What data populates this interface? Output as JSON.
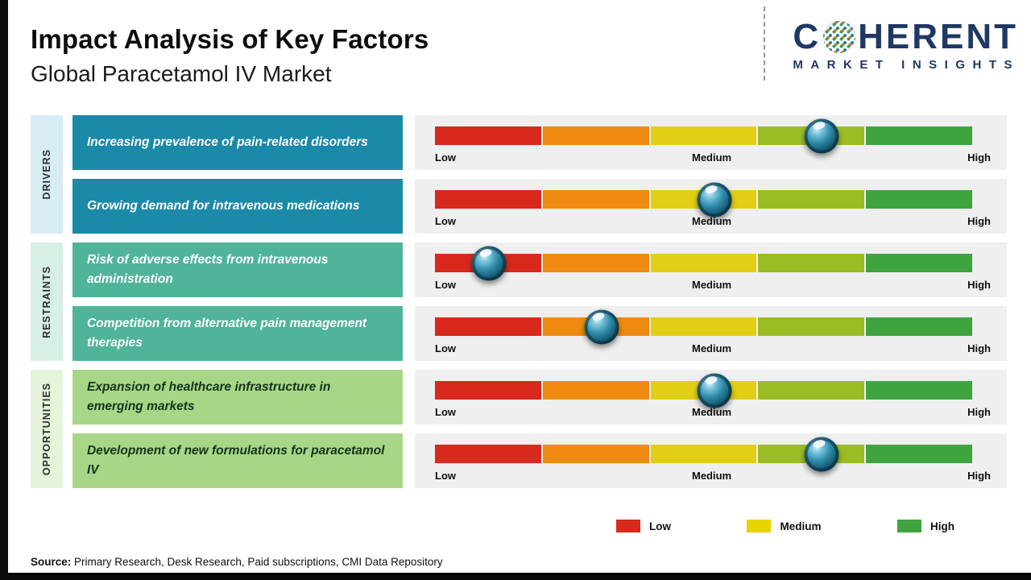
{
  "page": {
    "title": "Impact Analysis of Key Factors",
    "subtitle": "Global Paracetamol IV Market",
    "source_label": "Source:",
    "source_text": " Primary Research, Desk Research, Paid subscriptions, CMI Data Repository"
  },
  "logo": {
    "prefix": "C",
    "rest": "HERENT",
    "subtext": "MARKET INSIGHTS",
    "color": "#1f3864",
    "globe_icon": "dotted-globe-icon"
  },
  "scale": {
    "low": "Low",
    "medium": "Medium",
    "high": "High"
  },
  "bars": {
    "colors": [
      "#d9291c",
      "#ef8b10",
      "#e2ce14",
      "#9cbc23",
      "#3fa440"
    ],
    "track_bg": "#efefef"
  },
  "groups": [
    {
      "name": "DRIVERS",
      "panel_bg": "#d7ecf3",
      "box_bg": "#1a8aa8",
      "box_fg": "#ffffff",
      "factors": [
        {
          "label": "Increasing prevalence of pain-related disorders",
          "impact_pct": 72,
          "impact_level": "Medium-High"
        },
        {
          "label": "Growing demand for intravenous medications",
          "impact_pct": 52,
          "impact_level": "Medium"
        }
      ]
    },
    {
      "name": "RESTRAINTS",
      "panel_bg": "#d8efe6",
      "box_bg": "#4fb49a",
      "box_fg": "#ffffff",
      "factors": [
        {
          "label": "Risk of adverse effects from intravenous administration",
          "impact_pct": 10,
          "impact_level": "Low"
        },
        {
          "label": "Competition from alternative pain management therapies",
          "impact_pct": 31,
          "impact_level": "Low-Medium"
        }
      ]
    },
    {
      "name": "OPPORTUNITIES",
      "panel_bg": "#e4f3da",
      "box_bg": "#a7d786",
      "box_fg": "#14331a",
      "factors": [
        {
          "label": "Expansion of healthcare infrastructure in emerging markets",
          "impact_pct": 52,
          "impact_level": "Medium"
        },
        {
          "label": "Development of new formulations for paracetamol IV",
          "impact_pct": 72,
          "impact_level": "Medium-High"
        }
      ]
    }
  ],
  "legend": [
    {
      "label": "Low",
      "color": "#d9291c"
    },
    {
      "label": "Medium",
      "color": "#e8d400"
    },
    {
      "label": "High",
      "color": "#3fa440"
    }
  ],
  "chart_data": {
    "type": "bar",
    "title": "Impact Analysis of Key Factors",
    "subtitle": "Global Paracetamol IV Market",
    "scale_labels": [
      "Low",
      "Medium",
      "High"
    ],
    "categories": [
      "Increasing prevalence of pain-related disorders",
      "Growing demand for intravenous medications",
      "Risk of adverse effects from intravenous administration",
      "Competition from alternative pain management therapies",
      "Expansion of healthcare infrastructure in emerging markets",
      "Development of new formulations for paracetamol IV"
    ],
    "category_groups": [
      "DRIVERS",
      "DRIVERS",
      "RESTRAINTS",
      "RESTRAINTS",
      "OPPORTUNITIES",
      "OPPORTUNITIES"
    ],
    "series": [
      {
        "name": "Impact position (% along Low-to-High scale)",
        "values": [
          72,
          52,
          10,
          31,
          52,
          72
        ]
      }
    ],
    "impact_levels": [
      "Medium-High",
      "Medium",
      "Low",
      "Low-Medium",
      "Medium",
      "Medium-High"
    ],
    "xlim": [
      0,
      100
    ],
    "legend_position": "bottom",
    "legend_entries": [
      "Low",
      "Medium",
      "High"
    ]
  }
}
